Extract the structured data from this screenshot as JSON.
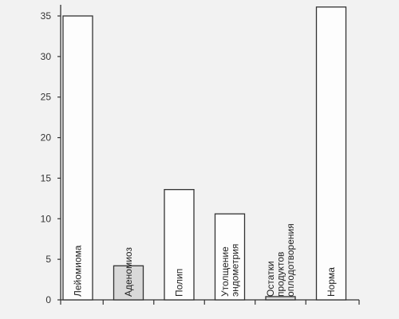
{
  "chart_data": {
    "type": "bar",
    "title": "",
    "xlabel": "",
    "ylabel": "",
    "ylim": [
      0,
      35
    ],
    "yticks": [
      0,
      5,
      10,
      15,
      20,
      25,
      30,
      35
    ],
    "grid": false,
    "bars": [
      {
        "label_lines": [
          "Лейомиома"
        ],
        "value": 35,
        "shaded": false
      },
      {
        "label_lines": [
          "Аденомиоз"
        ],
        "value": 4.2,
        "shaded": true
      },
      {
        "label_lines": [
          "Полип"
        ],
        "value": 13.6,
        "shaded": false
      },
      {
        "label_lines": [
          "Утолщение",
          "эндометрия"
        ],
        "value": 10.6,
        "shaded": false
      },
      {
        "label_lines": [
          "Остатки",
          "продуктов",
          "оплодотворения"
        ],
        "value": 0.4,
        "shaded": true
      },
      {
        "label_lines": [
          "Норма"
        ],
        "value": 36.1,
        "shaded": false
      }
    ],
    "colors": {
      "bar_fill": "#fdfdfd",
      "shaded_fill": "#d9d9d9",
      "stroke": "#333333",
      "background": "#f2f2f2"
    }
  }
}
